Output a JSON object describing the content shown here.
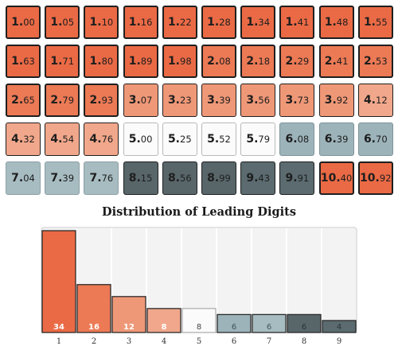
{
  "grid": {
    "columns": 10,
    "cells": [
      {
        "lead": "1.",
        "rest": "00",
        "digit": 1
      },
      {
        "lead": "1.",
        "rest": "05",
        "digit": 1
      },
      {
        "lead": "1.",
        "rest": "10",
        "digit": 1
      },
      {
        "lead": "1.",
        "rest": "16",
        "digit": 1
      },
      {
        "lead": "1.",
        "rest": "22",
        "digit": 1
      },
      {
        "lead": "1.",
        "rest": "28",
        "digit": 1
      },
      {
        "lead": "1.",
        "rest": "34",
        "digit": 1
      },
      {
        "lead": "1.",
        "rest": "41",
        "digit": 1
      },
      {
        "lead": "1.",
        "rest": "48",
        "digit": 1
      },
      {
        "lead": "1.",
        "rest": "55",
        "digit": 1
      },
      {
        "lead": "1.",
        "rest": "63",
        "digit": 1
      },
      {
        "lead": "1.",
        "rest": "71",
        "digit": 1
      },
      {
        "lead": "1.",
        "rest": "80",
        "digit": 1
      },
      {
        "lead": "1.",
        "rest": "89",
        "digit": 1
      },
      {
        "lead": "1.",
        "rest": "98",
        "digit": 1
      },
      {
        "lead": "2.",
        "rest": "08",
        "digit": 2
      },
      {
        "lead": "2.",
        "rest": "18",
        "digit": 2
      },
      {
        "lead": "2.",
        "rest": "29",
        "digit": 2
      },
      {
        "lead": "2.",
        "rest": "41",
        "digit": 2
      },
      {
        "lead": "2.",
        "rest": "53",
        "digit": 2
      },
      {
        "lead": "2.",
        "rest": "65",
        "digit": 2
      },
      {
        "lead": "2.",
        "rest": "79",
        "digit": 2
      },
      {
        "lead": "2.",
        "rest": "93",
        "digit": 2
      },
      {
        "lead": "3.",
        "rest": "07",
        "digit": 3
      },
      {
        "lead": "3.",
        "rest": "23",
        "digit": 3
      },
      {
        "lead": "3.",
        "rest": "39",
        "digit": 3
      },
      {
        "lead": "3.",
        "rest": "56",
        "digit": 3
      },
      {
        "lead": "3.",
        "rest": "73",
        "digit": 3
      },
      {
        "lead": "3.",
        "rest": "92",
        "digit": 3
      },
      {
        "lead": "4.",
        "rest": "12",
        "digit": 4
      },
      {
        "lead": "4.",
        "rest": "32",
        "digit": 4
      },
      {
        "lead": "4.",
        "rest": "54",
        "digit": 4
      },
      {
        "lead": "4.",
        "rest": "76",
        "digit": 4
      },
      {
        "lead": "5.",
        "rest": "00",
        "digit": 5
      },
      {
        "lead": "5.",
        "rest": "25",
        "digit": 5
      },
      {
        "lead": "5.",
        "rest": "52",
        "digit": 5
      },
      {
        "lead": "5.",
        "rest": "79",
        "digit": 5
      },
      {
        "lead": "6.",
        "rest": "08",
        "digit": 6
      },
      {
        "lead": "6.",
        "rest": "39",
        "digit": 6
      },
      {
        "lead": "6.",
        "rest": "70",
        "digit": 6
      },
      {
        "lead": "7.",
        "rest": "04",
        "digit": 7
      },
      {
        "lead": "7.",
        "rest": "39",
        "digit": 7
      },
      {
        "lead": "7.",
        "rest": "76",
        "digit": 7
      },
      {
        "lead": "8.",
        "rest": "15",
        "digit": 8
      },
      {
        "lead": "8.",
        "rest": "56",
        "digit": 8
      },
      {
        "lead": "8.",
        "rest": "99",
        "digit": 8
      },
      {
        "lead": "9.",
        "rest": "43",
        "digit": 9
      },
      {
        "lead": "9.",
        "rest": "91",
        "digit": 9
      },
      {
        "lead": "10.",
        "rest": "40",
        "digit": 1
      },
      {
        "lead": "10.",
        "rest": "92",
        "digit": 1
      }
    ]
  },
  "chart_data": {
    "type": "bar",
    "title": "Distribution of Leading Digits",
    "categories": [
      "1",
      "2",
      "3",
      "4",
      "5",
      "6",
      "7",
      "8",
      "9"
    ],
    "values": [
      34,
      16,
      12,
      8,
      8,
      6,
      6,
      6,
      4
    ],
    "value_labels": [
      "34",
      "16",
      "12",
      "8",
      "8",
      "6",
      "6",
      "6",
      "4"
    ],
    "ylim": [
      0,
      34
    ],
    "grid": false,
    "xlabel": "",
    "ylabel": ""
  },
  "colors": {
    "digit_1": "#ea6a45",
    "digit_2": "#ec7a55",
    "digit_3": "#ef9877",
    "digit_4": "#f1a78b",
    "digit_5": "#fbfbfb",
    "digit_6": "#9cb3b9",
    "digit_7": "#a7bcc1",
    "digit_8": "#58666a",
    "digit_9": "#5b6b70",
    "column_background": "#f3f3f3"
  }
}
